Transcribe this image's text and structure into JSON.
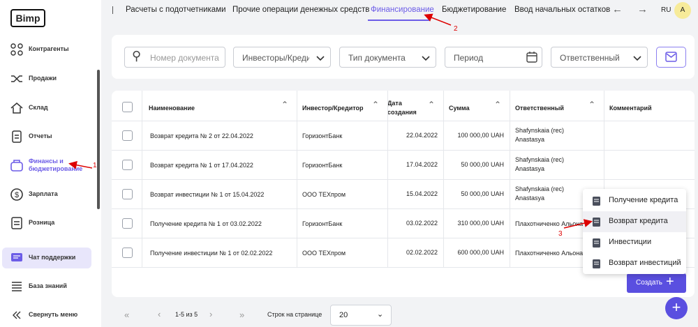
{
  "sidebar": {
    "logo": "Bimp",
    "items": [
      "Контрагенты",
      "Продажи",
      "Склад",
      "Отчеты",
      "Финансы и бюджетирование",
      "Зарплата",
      "Розница"
    ],
    "support": "Чат поддержки",
    "knowledge": "База знаний",
    "collapse": "Свернуть меню"
  },
  "tabs": [
    "Расчеты с подотчетниками",
    "Прочие операции денежных средств",
    "Финансирование",
    "Бюджетирование",
    "Ввод начальных остатков"
  ],
  "lang": "RU",
  "avatar": "A",
  "filters": [
    "Номер документа",
    "Инвесторы/Кредиторы",
    "Тип документа",
    "Период",
    "Ответственный"
  ],
  "table": {
    "headers": [
      "Наименование",
      "Инвестор/Кредитор",
      "Дата создания",
      "Сумма",
      "Ответственный",
      "Комментарий"
    ],
    "rows": [
      [
        "Возврат кредита № 2 от 22.04.2022",
        "ГоризонтБанк",
        "22.04.2022",
        "100 000,00 UAH",
        "Shafynskaia (rec) Anastasya"
      ],
      [
        "Возврат кредита № 1 от 17.04.2022",
        "ГоризонтБанк",
        "17.04.2022",
        "50 000,00 UAH",
        "Shafynskaia (rec) Anastasya"
      ],
      [
        "Возврат инвестиции № 1 от 15.04.2022",
        "ООО ТЕХпром",
        "15.04.2022",
        "50 000,00 UAH",
        "Shafynskaia (rec) Anastasya"
      ],
      [
        "Получение кредита № 1 от 03.02.2022",
        "ГоризонтБанк",
        "03.02.2022",
        "310 000,00 UAH",
        "Плахотниченко Альона"
      ],
      [
        "Получение инвестиции № 1 от 02.02.2022",
        "ООО ТЕХпром",
        "02.02.2022",
        "600 000,00 UAH",
        "Плахотниченко Альона"
      ]
    ]
  },
  "menu": [
    "Получение кредита",
    "Возврат кредита",
    "Инвестиции",
    "Возврат инвестиций"
  ],
  "create": "Создать",
  "pagination": {
    "range": "1-5 из 5",
    "rows_label": "Строк на странице",
    "rows_value": "20"
  },
  "annotations": [
    "1",
    "2",
    "3"
  ]
}
